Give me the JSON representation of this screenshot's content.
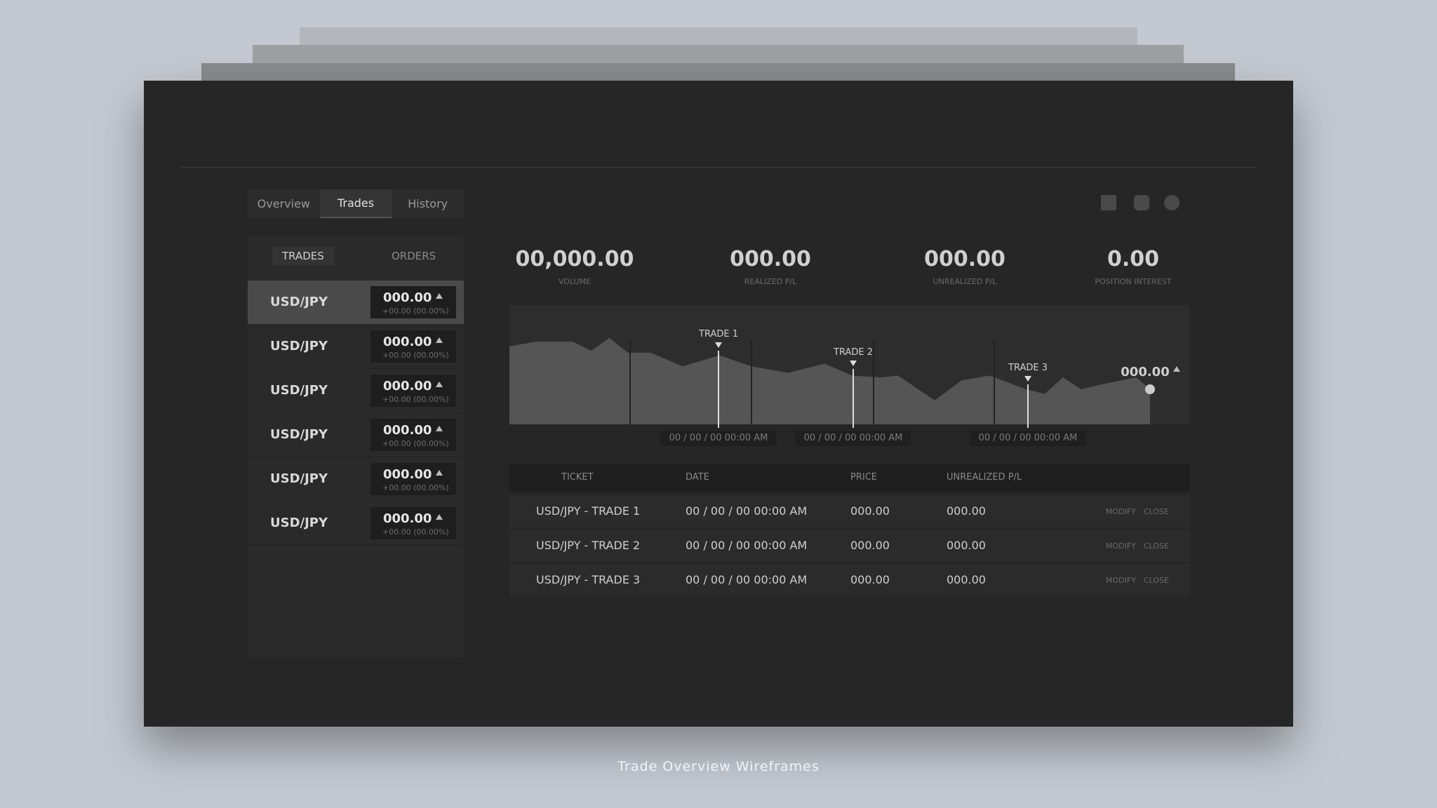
{
  "tabs": [
    "Overview",
    "Trades",
    "History"
  ],
  "subtabs": [
    "TRADES",
    "ORDERS"
  ],
  "instruments": [
    {
      "symbol": "USD/JPY",
      "price": "000.00",
      "change": "+00.00 (00.00%)"
    },
    {
      "symbol": "USD/JPY",
      "price": "000.00",
      "change": "+00.00 (00.00%)"
    },
    {
      "symbol": "USD/JPY",
      "price": "000.00",
      "change": "+00.00 (00.00%)"
    },
    {
      "symbol": "USD/JPY",
      "price": "000.00",
      "change": "+00.00 (00.00%)"
    },
    {
      "symbol": "USD/JPY",
      "price": "000.00",
      "change": "+00.00 (00.00%)"
    },
    {
      "symbol": "USD/JPY",
      "price": "000.00",
      "change": "+00.00 (00.00%)"
    }
  ],
  "stats": [
    {
      "value": "00,000.00",
      "label": "VOLUME"
    },
    {
      "value": "000.00",
      "label": "REALIZED P/L"
    },
    {
      "value": "000.00",
      "label": "UNREALIZED P/L"
    },
    {
      "value": "0.00",
      "label": "POSITION INTEREST"
    }
  ],
  "chart": {
    "markers": [
      {
        "label": "TRADE 1",
        "date": "00 / 00 / 00 00:00 AM"
      },
      {
        "label": "TRADE 2",
        "date": "00 / 00 / 00 00:00 AM"
      },
      {
        "label": "TRADE 3",
        "date": "00 / 00 / 00 00:00 AM"
      }
    ],
    "current_value": "000.00"
  },
  "table": {
    "headers": [
      "TICKET",
      "DATE",
      "PRICE",
      "UNREALIZED P/L"
    ],
    "rows": [
      {
        "ticket": "USD/JPY - TRADE 1",
        "date": "00 / 00 / 00 00:00 AM",
        "price": "000.00",
        "pl": "000.00",
        "actions": [
          "MODIFY",
          "CLOSE"
        ]
      },
      {
        "ticket": "USD/JPY - TRADE 2",
        "date": "00 / 00 / 00 00:00 AM",
        "price": "000.00",
        "pl": "000.00",
        "actions": [
          "MODIFY",
          "CLOSE"
        ]
      },
      {
        "ticket": "USD/JPY - TRADE 3",
        "date": "00 / 00 / 00 00:00 AM",
        "price": "000.00",
        "pl": "000.00",
        "actions": [
          "MODIFY",
          "CLOSE"
        ]
      }
    ]
  },
  "caption": "Trade Overview Wireframes"
}
